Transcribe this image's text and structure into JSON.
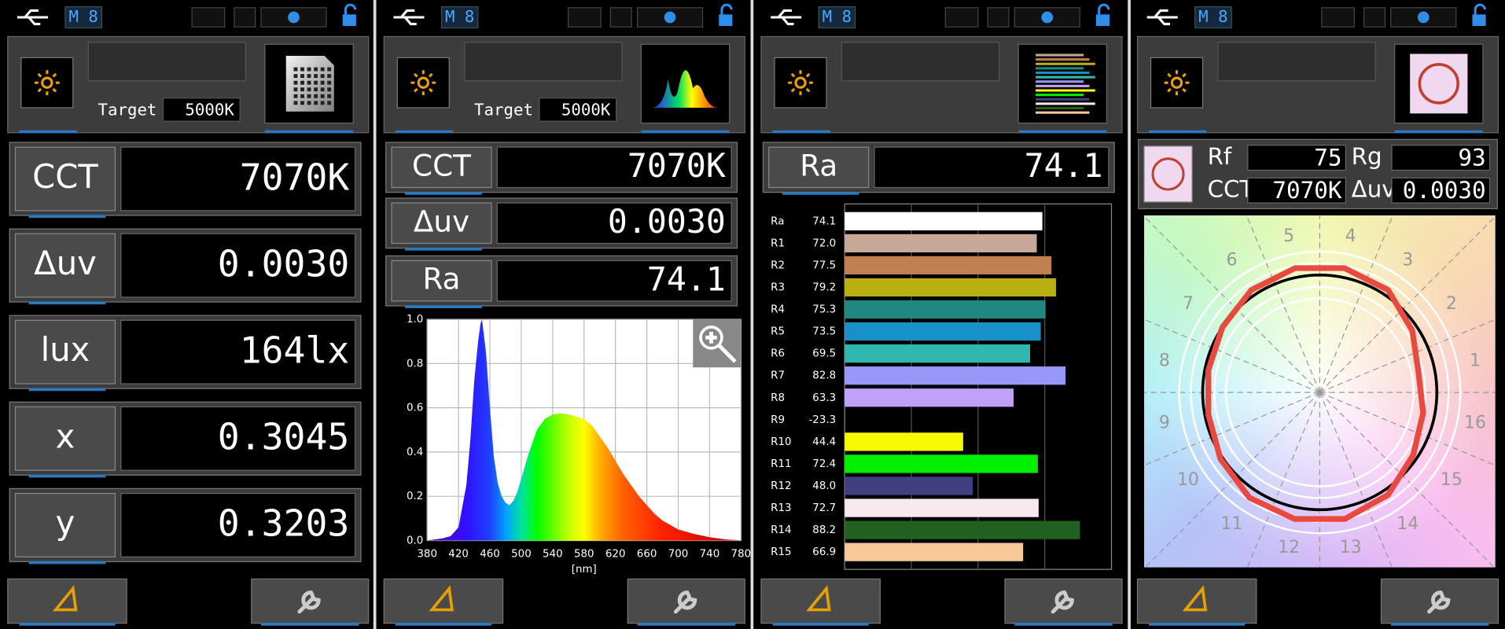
{
  "panels": [
    {
      "mode": "M 8",
      "target_label": "Target",
      "target": "5000K",
      "readouts": [
        {
          "label": "CCT",
          "value": "7070K"
        },
        {
          "label": "Δuv",
          "value": "0.0030"
        },
        {
          "label": "lux",
          "value": "164lx"
        },
        {
          "label": "x",
          "value": "0.3045"
        },
        {
          "label": "y",
          "value": "0.3203"
        }
      ]
    },
    {
      "mode": "M 8",
      "target_label": "Target",
      "target": "5000K",
      "readouts": [
        {
          "label": "CCT",
          "value": "7070K"
        },
        {
          "label": "Δuv",
          "value": "0.0030"
        },
        {
          "label": "Ra",
          "value": "74.1"
        }
      ]
    },
    {
      "mode": "M 8",
      "readouts": [
        {
          "label": "Ra",
          "value": "74.1"
        }
      ]
    },
    {
      "mode": "M 8",
      "readouts": [
        {
          "label": "Rf",
          "value": "75"
        },
        {
          "label": "Rg",
          "value": "93"
        },
        {
          "label": "CCT",
          "value": "7070K"
        },
        {
          "label": "Δuv",
          "value": "0.0030"
        }
      ]
    }
  ],
  "chart_data": [
    {
      "type": "area",
      "x_label": "[nm]",
      "x": [
        380,
        400,
        410,
        420,
        430,
        435,
        440,
        445,
        448,
        450,
        455,
        460,
        465,
        470,
        475,
        480,
        485,
        490,
        495,
        500,
        510,
        520,
        530,
        540,
        550,
        560,
        570,
        580,
        590,
        600,
        610,
        620,
        630,
        640,
        650,
        660,
        670,
        680,
        690,
        700,
        720,
        740,
        760,
        780
      ],
      "values": [
        0,
        0.01,
        0.02,
        0.06,
        0.25,
        0.45,
        0.72,
        0.9,
        0.98,
        1.0,
        0.85,
        0.6,
        0.38,
        0.26,
        0.2,
        0.17,
        0.16,
        0.18,
        0.22,
        0.28,
        0.4,
        0.5,
        0.55,
        0.57,
        0.575,
        0.57,
        0.56,
        0.55,
        0.52,
        0.47,
        0.42,
        0.36,
        0.3,
        0.25,
        0.2,
        0.16,
        0.12,
        0.09,
        0.07,
        0.05,
        0.03,
        0.015,
        0.005,
        0
      ],
      "xlim": [
        380,
        780
      ],
      "ylim": [
        0,
        1
      ],
      "xticks": [
        380,
        420,
        460,
        500,
        540,
        580,
        620,
        660,
        700,
        740,
        780
      ],
      "yticks": [
        {
          "value": 0,
          "label": "0.0"
        },
        {
          "value": 0.2,
          "label": "0.2"
        },
        {
          "value": 0.4,
          "label": "0.4"
        },
        {
          "value": 0.6,
          "label": "0.6"
        },
        {
          "value": 0.8,
          "label": "0.8"
        },
        {
          "value": 1,
          "label": "1.0"
        }
      ],
      "grid": true
    },
    {
      "type": "bar",
      "orientation": "horizontal",
      "categories": [
        "Ra",
        "R1",
        "R2",
        "R3",
        "R4",
        "R5",
        "R6",
        "R7",
        "R8",
        "R9",
        "R10",
        "R11",
        "R12",
        "R13",
        "R14",
        "R15"
      ],
      "values": [
        74.1,
        72.0,
        77.5,
        79.2,
        75.3,
        73.5,
        69.5,
        82.8,
        63.3,
        -23.3,
        44.4,
        72.4,
        48.0,
        72.7,
        88.2,
        66.9
      ],
      "value_labels": [
        "74.1",
        "72.0",
        "77.5",
        "79.2",
        "75.3",
        "73.5",
        "69.5",
        "82.8",
        "63.3",
        "-23.3",
        "44.4",
        "72.4",
        "48.0",
        "72.7",
        "88.2",
        "66.9"
      ],
      "colors": [
        "#ffffff",
        "#c8a896",
        "#c08050",
        "#b8b010",
        "#208880",
        "#1890c8",
        "#30b8b0",
        "#9898f8",
        "#c0a0f8",
        "#e02020",
        "#f8f800",
        "#00f000",
        "#404080",
        "#f8e8f0",
        "#206020",
        "#f8c898"
      ],
      "xlim": [
        0,
        100
      ],
      "xticks": [
        25,
        50,
        75
      ],
      "grid": true
    },
    {
      "type": "polar",
      "categories": [
        "1",
        "2",
        "3",
        "4",
        "5",
        "6",
        "7",
        "8",
        "9",
        "10",
        "11",
        "12",
        "13",
        "14",
        "15",
        "16"
      ],
      "values": [
        0.86,
        0.95,
        1.05,
        1.08,
        1.08,
        1.05,
        1.0,
        0.97,
        0.97,
        1.02,
        1.08,
        1.1,
        1.1,
        1.05,
        0.96,
        0.9
      ],
      "color": "#e84a40"
    }
  ]
}
